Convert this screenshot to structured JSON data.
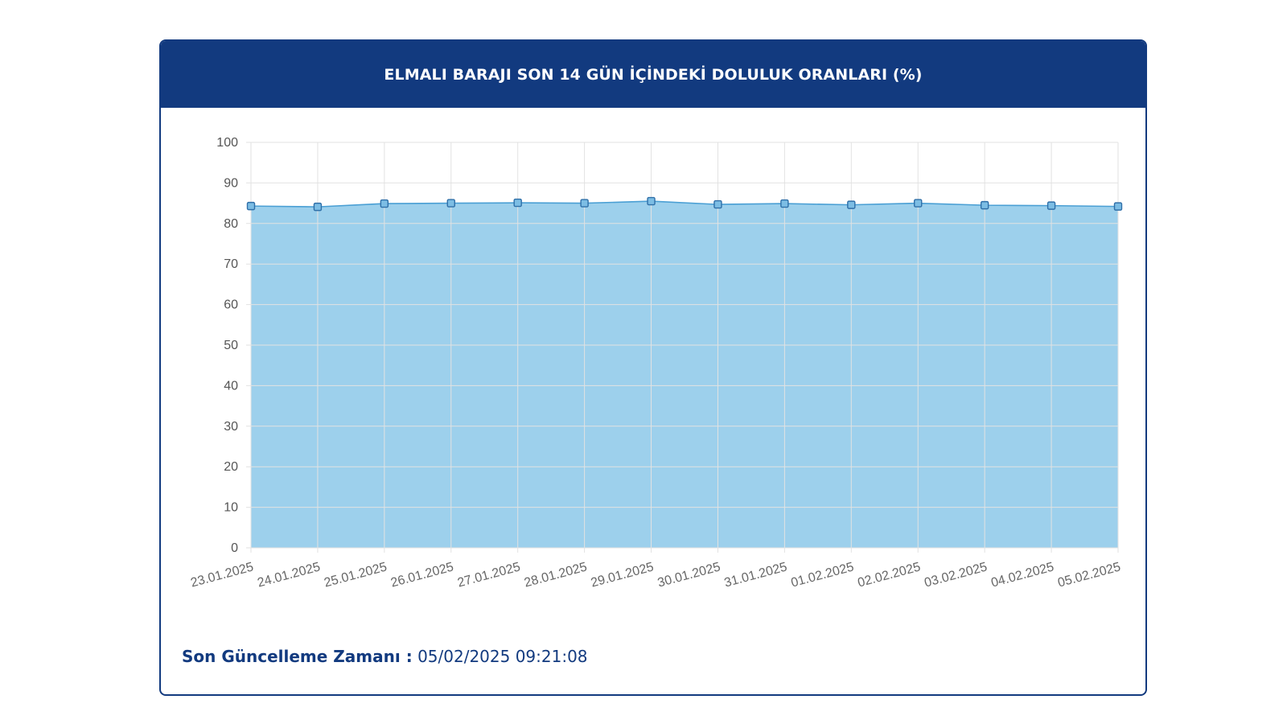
{
  "card": {
    "title": "ELMALI BARAJI SON 14 GÜN İÇİNDEKİ DOLULUK ORANLARI (%)"
  },
  "footer": {
    "label": "Son Güncelleme Zamanı :",
    "value": "05/02/2025 09:21:08"
  },
  "colors": {
    "header": "#123a7f",
    "area_fill": "#9dd0ec",
    "line": "#4a9fd4",
    "grid": "#e2e2e2"
  },
  "chart_data": {
    "type": "area",
    "title": "ELMALI BARAJI SON 14 GÜN İÇİNDEKİ DOLULUK ORANLARI (%)",
    "xlabel": "",
    "ylabel": "",
    "ylim": [
      0,
      100
    ],
    "yticks": [
      0,
      10,
      20,
      30,
      40,
      50,
      60,
      70,
      80,
      90,
      100
    ],
    "grid": true,
    "legend": "none",
    "categories": [
      "23.01.2025",
      "24.01.2025",
      "25.01.2025",
      "26.01.2025",
      "27.01.2025",
      "28.01.2025",
      "29.01.2025",
      "30.01.2025",
      "31.01.2025",
      "01.02.2025",
      "02.02.2025",
      "03.02.2025",
      "04.02.2025",
      "05.02.2025"
    ],
    "series": [
      {
        "values": [
          84.3,
          84.1,
          84.9,
          85.0,
          85.1,
          85.0,
          85.5,
          84.7,
          84.9,
          84.6,
          85.0,
          84.5,
          84.4,
          84.2
        ]
      }
    ]
  }
}
